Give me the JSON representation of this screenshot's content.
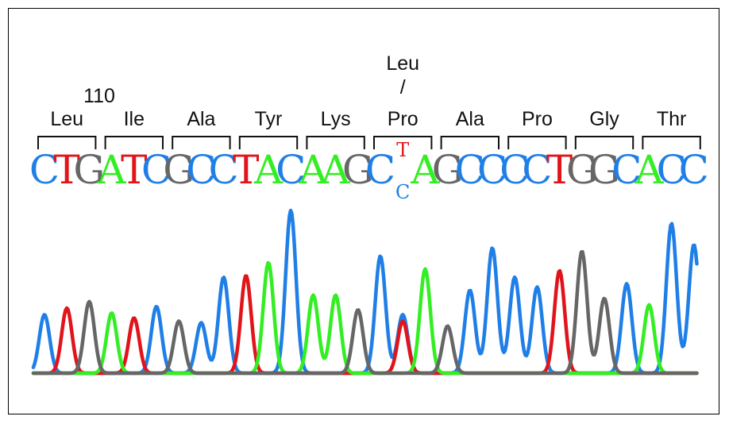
{
  "position_label": "110",
  "colors": {
    "A": "#33ee22",
    "C": "#1f7fe6",
    "G": "#666666",
    "T": "#e0141a"
  },
  "codons": [
    {
      "aa": "Leu",
      "bases": "CTG"
    },
    {
      "aa": "Ile",
      "bases": "ATC"
    },
    {
      "aa": "Ala",
      "bases": "GCC"
    },
    {
      "aa": "Tyr",
      "bases": "TAC"
    },
    {
      "aa": "Lys",
      "bases": "AAG"
    },
    {
      "aa": "Pro",
      "bases": "C_A",
      "variant": {
        "alt_aa": "Leu",
        "slash": "/",
        "top": "T",
        "bottom": "C"
      }
    },
    {
      "aa": "Ala",
      "bases": "GCC"
    },
    {
      "aa": "Pro",
      "bases": "CCT"
    },
    {
      "aa": "Gly",
      "bases": "GGC"
    },
    {
      "aa": "Thr",
      "bases": "ACC"
    }
  ],
  "peaks": [
    {
      "base": "C",
      "height": 0.36
    },
    {
      "base": "T",
      "height": 0.4
    },
    {
      "base": "G",
      "height": 0.44
    },
    {
      "base": "A",
      "height": 0.37
    },
    {
      "base": "T",
      "height": 0.34
    },
    {
      "base": "C",
      "height": 0.41
    },
    {
      "base": "G",
      "height": 0.32
    },
    {
      "base": "C",
      "height": 0.31
    },
    {
      "base": "C",
      "height": 0.59
    },
    {
      "base": "T",
      "height": 0.6
    },
    {
      "base": "A",
      "height": 0.68
    },
    {
      "base": "C",
      "height": 1.0
    },
    {
      "base": "A",
      "height": 0.48
    },
    {
      "base": "A",
      "height": 0.48
    },
    {
      "base": "G",
      "height": 0.39
    },
    {
      "base": "C",
      "height": 0.72
    },
    {
      "base": "C",
      "height": 0.36,
      "minor": {
        "base": "T",
        "height": 0.32
      }
    },
    {
      "base": "A",
      "height": 0.64
    },
    {
      "base": "G",
      "height": 0.29
    },
    {
      "base": "C",
      "height": 0.51
    },
    {
      "base": "C",
      "height": 0.77
    },
    {
      "base": "C",
      "height": 0.59
    },
    {
      "base": "C",
      "height": 0.53
    },
    {
      "base": "T",
      "height": 0.63
    },
    {
      "base": "G",
      "height": 0.75
    },
    {
      "base": "G",
      "height": 0.46
    },
    {
      "base": "C",
      "height": 0.55
    },
    {
      "base": "A",
      "height": 0.42
    },
    {
      "base": "C",
      "height": 0.92
    },
    {
      "base": "C",
      "height": 0.79
    }
  ]
}
